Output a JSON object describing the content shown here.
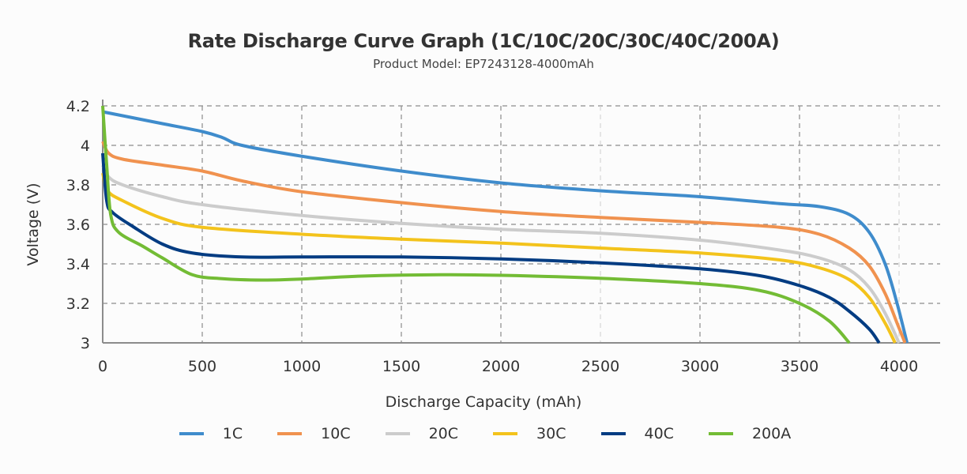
{
  "chart_data": {
    "type": "line",
    "title": "Rate Discharge Curve Graph (1C/10C/20C/30C/40C/200A)",
    "subtitle": "Product Model: EP7243128-4000mAh",
    "xlabel": "Discharge Capacity (mAh)",
    "ylabel": "Voltage (V)",
    "xlim": [
      0,
      4200
    ],
    "ylim": [
      3,
      4.2
    ],
    "xticks": [
      0,
      500,
      1000,
      1500,
      2000,
      2500,
      3000,
      3500,
      4000
    ],
    "xtick_labels": [
      "0",
      "500",
      "1000",
      "1500",
      "2000",
      "2500",
      "3000",
      "3500",
      "4000"
    ],
    "yticks": [
      3,
      3.2,
      3.4,
      3.6,
      3.8,
      4,
      4.2
    ],
    "ytick_labels": [
      "3",
      "3.2",
      "3.4",
      "3.6",
      "3.8",
      "4",
      "4.2"
    ],
    "grid": true,
    "legend_position": "bottom",
    "series": [
      {
        "name": "1C",
        "color": "#3f8ccc",
        "points": [
          [
            0,
            4.17
          ],
          [
            100,
            4.15
          ],
          [
            300,
            4.11
          ],
          [
            500,
            4.07
          ],
          [
            600,
            4.04
          ],
          [
            700,
            4.0
          ],
          [
            1000,
            3.945
          ],
          [
            1500,
            3.87
          ],
          [
            2000,
            3.81
          ],
          [
            2500,
            3.77
          ],
          [
            3000,
            3.74
          ],
          [
            3400,
            3.705
          ],
          [
            3600,
            3.69
          ],
          [
            3750,
            3.65
          ],
          [
            3850,
            3.56
          ],
          [
            3930,
            3.4
          ],
          [
            3990,
            3.2
          ],
          [
            4040,
            3.0
          ]
        ]
      },
      {
        "name": "10C",
        "color": "#f0924f",
        "points": [
          [
            0,
            4.02
          ],
          [
            30,
            3.96
          ],
          [
            100,
            3.93
          ],
          [
            300,
            3.9
          ],
          [
            500,
            3.87
          ],
          [
            700,
            3.82
          ],
          [
            1000,
            3.765
          ],
          [
            1500,
            3.71
          ],
          [
            2000,
            3.665
          ],
          [
            2500,
            3.635
          ],
          [
            3000,
            3.61
          ],
          [
            3400,
            3.585
          ],
          [
            3600,
            3.55
          ],
          [
            3750,
            3.48
          ],
          [
            3850,
            3.39
          ],
          [
            3930,
            3.25
          ],
          [
            3990,
            3.1
          ],
          [
            4030,
            3.0
          ]
        ]
      },
      {
        "name": "20C",
        "color": "#cccccc",
        "points": [
          [
            0,
            3.9
          ],
          [
            30,
            3.84
          ],
          [
            100,
            3.8
          ],
          [
            300,
            3.74
          ],
          [
            500,
            3.7
          ],
          [
            1000,
            3.645
          ],
          [
            1500,
            3.605
          ],
          [
            2000,
            3.575
          ],
          [
            2500,
            3.555
          ],
          [
            3000,
            3.52
          ],
          [
            3400,
            3.47
          ],
          [
            3600,
            3.43
          ],
          [
            3750,
            3.37
          ],
          [
            3850,
            3.28
          ],
          [
            3930,
            3.15
          ],
          [
            4000,
            3.0
          ]
        ]
      },
      {
        "name": "30C",
        "color": "#f3c31c",
        "points": [
          [
            0,
            3.86
          ],
          [
            25,
            3.77
          ],
          [
            100,
            3.72
          ],
          [
            300,
            3.63
          ],
          [
            500,
            3.585
          ],
          [
            1000,
            3.55
          ],
          [
            1500,
            3.525
          ],
          [
            2000,
            3.505
          ],
          [
            2500,
            3.48
          ],
          [
            3000,
            3.455
          ],
          [
            3400,
            3.42
          ],
          [
            3600,
            3.38
          ],
          [
            3750,
            3.32
          ],
          [
            3850,
            3.23
          ],
          [
            3930,
            3.1
          ],
          [
            3980,
            3.0
          ]
        ]
      },
      {
        "name": "40C",
        "color": "#033c82",
        "points": [
          [
            0,
            3.96
          ],
          [
            20,
            3.72
          ],
          [
            50,
            3.66
          ],
          [
            150,
            3.59
          ],
          [
            300,
            3.5
          ],
          [
            450,
            3.455
          ],
          [
            700,
            3.435
          ],
          [
            1000,
            3.435
          ],
          [
            1500,
            3.435
          ],
          [
            2000,
            3.425
          ],
          [
            2500,
            3.405
          ],
          [
            3000,
            3.375
          ],
          [
            3300,
            3.34
          ],
          [
            3500,
            3.29
          ],
          [
            3650,
            3.23
          ],
          [
            3750,
            3.16
          ],
          [
            3850,
            3.07
          ],
          [
            3900,
            3.0
          ]
        ]
      },
      {
        "name": "200A",
        "color": "#73bc35",
        "points": [
          [
            0,
            4.2
          ],
          [
            20,
            3.9
          ],
          [
            40,
            3.65
          ],
          [
            80,
            3.56
          ],
          [
            200,
            3.49
          ],
          [
            300,
            3.43
          ],
          [
            450,
            3.345
          ],
          [
            600,
            3.325
          ],
          [
            800,
            3.318
          ],
          [
            1000,
            3.323
          ],
          [
            1300,
            3.338
          ],
          [
            1700,
            3.345
          ],
          [
            2000,
            3.342
          ],
          [
            2500,
            3.327
          ],
          [
            3000,
            3.3
          ],
          [
            3300,
            3.265
          ],
          [
            3500,
            3.2
          ],
          [
            3650,
            3.11
          ],
          [
            3750,
            3.0
          ]
        ]
      }
    ]
  }
}
